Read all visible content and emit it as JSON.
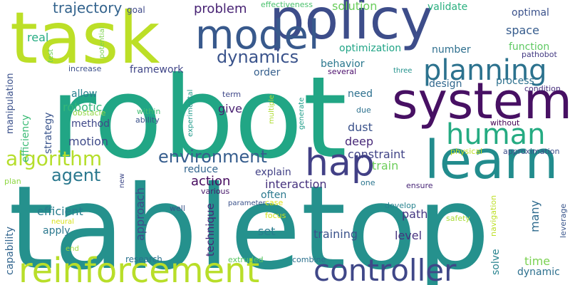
{
  "words": [
    {
      "text": "robot",
      "color": "#21a685"
    },
    {
      "text": "tabletop",
      "color": "#25918d"
    },
    {
      "text": "task",
      "color": "#bcdf27"
    },
    {
      "text": "policy",
      "color": "#3d4d8a"
    },
    {
      "text": "system",
      "color": "#471063"
    },
    {
      "text": "learn",
      "color": "#228c8d"
    },
    {
      "text": "model",
      "color": "#38598c"
    },
    {
      "text": "reinforcement",
      "color": "#b8de29"
    },
    {
      "text": "controller",
      "color": "#3f4788"
    },
    {
      "text": "planning",
      "color": "#2c728e"
    },
    {
      "text": "human",
      "color": "#25ab82"
    },
    {
      "text": "hap",
      "color": "#424086"
    },
    {
      "text": "algorithm",
      "color": "#b5de2b"
    },
    {
      "text": "dynamics",
      "color": "#3a538b"
    },
    {
      "text": "environment",
      "color": "#365d8d"
    },
    {
      "text": "agent",
      "color": "#2a788e"
    },
    {
      "text": "trajectory",
      "color": "#33638d"
    },
    {
      "text": "problem",
      "color": "#482374"
    },
    {
      "text": "solution",
      "color": "#69cd5b"
    },
    {
      "text": "validate",
      "color": "#2ab07f"
    },
    {
      "text": "optimal",
      "color": "#3b528b"
    },
    {
      "text": "goal",
      "color": "#3e4989"
    },
    {
      "text": "effectiveness",
      "color": "#4ac16d"
    },
    {
      "text": "space",
      "color": "#365c8d"
    },
    {
      "text": "real",
      "color": "#25ac82"
    },
    {
      "text": "optimization",
      "color": "#20a486"
    },
    {
      "text": "number",
      "color": "#2e6f8e"
    },
    {
      "text": "function",
      "color": "#5ec962"
    },
    {
      "text": "pathobot",
      "color": "#443a83"
    },
    {
      "text": "behavior",
      "color": "#2a778e"
    },
    {
      "text": "design",
      "color": "#31688e"
    },
    {
      "text": "process",
      "color": "#2d718e"
    },
    {
      "text": "framework",
      "color": "#404688"
    },
    {
      "text": "order",
      "color": "#355f8d"
    },
    {
      "text": "manipulation",
      "color": "#3b518b"
    },
    {
      "text": "test",
      "color": "#6ece58"
    },
    {
      "text": "potential",
      "color": "#7fd34e"
    },
    {
      "text": "increase",
      "color": "#3c4f8a"
    },
    {
      "text": "several",
      "color": "#4a0c6b"
    },
    {
      "text": "three",
      "color": "#21918c"
    },
    {
      "text": "condition",
      "color": "#472f7d"
    },
    {
      "text": "allow",
      "color": "#27808e"
    },
    {
      "text": "need",
      "color": "#2d708e"
    },
    {
      "text": "robotic",
      "color": "#35b779"
    },
    {
      "text": "efficiency",
      "color": "#3bbb75"
    },
    {
      "text": "strategy",
      "color": "#3a548c"
    },
    {
      "text": "obstacle",
      "color": "#90d743"
    },
    {
      "text": "term",
      "color": "#3f4889"
    },
    {
      "text": "give",
      "color": "#481f70"
    },
    {
      "text": "multiple",
      "color": "#addc30"
    },
    {
      "text": "generate",
      "color": "#1f9e89"
    },
    {
      "text": "due",
      "color": "#2d718e"
    },
    {
      "text": "method",
      "color": "#3f4889"
    },
    {
      "text": "within",
      "color": "#42be71"
    },
    {
      "text": "ability",
      "color": "#3b528b"
    },
    {
      "text": "experimental",
      "color": "#1f9a8a"
    },
    {
      "text": "dust",
      "color": "#3b528b"
    },
    {
      "text": "without",
      "color": "#440154"
    },
    {
      "text": "motion",
      "color": "#3e4a89"
    },
    {
      "text": "deep",
      "color": "#472878"
    },
    {
      "text": "constraint",
      "color": "#414487"
    },
    {
      "text": "physical",
      "color": "#c2df23"
    },
    {
      "text": "approximation",
      "color": "#3d4e8a"
    },
    {
      "text": "reduce",
      "color": "#32658e"
    },
    {
      "text": "explain",
      "color": "#424186"
    },
    {
      "text": "train",
      "color": "#6ccd5a"
    },
    {
      "text": "action",
      "color": "#460b5e"
    },
    {
      "text": "approach",
      "color": "#3e4c8a"
    },
    {
      "text": "interaction",
      "color": "#46327e"
    },
    {
      "text": "one",
      "color": "#2b758e"
    },
    {
      "text": "plan",
      "color": "#8fd744"
    },
    {
      "text": "new",
      "color": "#3e4989"
    },
    {
      "text": "technique",
      "color": "#482576"
    },
    {
      "text": "various",
      "color": "#48196b"
    },
    {
      "text": "often",
      "color": "#2a788e"
    },
    {
      "text": "ensure",
      "color": "#482677"
    },
    {
      "text": "efficient",
      "color": "#287d8e"
    },
    {
      "text": "well",
      "color": "#3a538b"
    },
    {
      "text": "develop",
      "color": "#26828e"
    },
    {
      "text": "path",
      "color": "#453882"
    },
    {
      "text": "leverage",
      "color": "#39568c"
    },
    {
      "text": "capability",
      "color": "#32658e"
    },
    {
      "text": "neural",
      "color": "#d8e219"
    },
    {
      "text": "parameter",
      "color": "#3b528b"
    },
    {
      "text": "case",
      "color": "#e2e418"
    },
    {
      "text": "focus",
      "color": "#d0e11c"
    },
    {
      "text": "safety",
      "color": "#a8db34"
    },
    {
      "text": "navigation",
      "color": "#bddf26"
    },
    {
      "text": "many",
      "color": "#2f6b8e"
    },
    {
      "text": "apply",
      "color": "#2a788e"
    },
    {
      "text": "set",
      "color": "#287c8e"
    },
    {
      "text": "training",
      "color": "#3b528b"
    },
    {
      "text": "level",
      "color": "#46337f"
    },
    {
      "text": "solve",
      "color": "#26828e"
    },
    {
      "text": "time",
      "color": "#7ad151"
    },
    {
      "text": "dynamic",
      "color": "#2d708e"
    },
    {
      "text": "end",
      "color": "#a0da39"
    },
    {
      "text": "research",
      "color": "#2c728e"
    },
    {
      "text": "extruded",
      "color": "#5ac864"
    },
    {
      "text": "combine",
      "color": "#2d718e"
    }
  ]
}
